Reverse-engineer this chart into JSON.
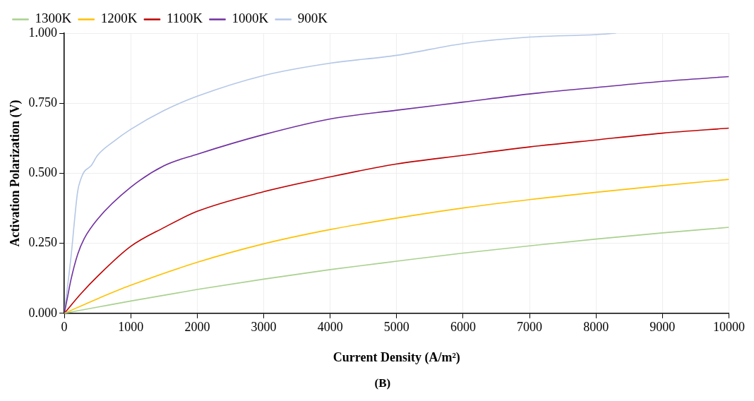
{
  "chart_data": {
    "type": "line",
    "xlabel": "Current Density (A/m²)",
    "ylabel": "Activation Polarization (V)",
    "annotations": [
      "(B)"
    ],
    "xlim": [
      0,
      10000
    ],
    "xticks": [
      0,
      1000,
      2000,
      3000,
      4000,
      5000,
      6000,
      7000,
      8000,
      9000,
      10000
    ],
    "ylim": [
      0,
      1
    ],
    "yticks": [
      {
        "value": 0,
        "label": "0.000"
      },
      {
        "value": 0.25,
        "label": "0.250"
      },
      {
        "value": 0.5,
        "label": "0.500"
      },
      {
        "value": 0.75,
        "label": "0.750"
      },
      {
        "value": 1,
        "label": "1.000"
      }
    ],
    "grid": true,
    "legend": "top left",
    "marker": "none",
    "line_style": "solid",
    "series": [
      {
        "name": "1300K",
        "color": "#a9d18e",
        "x": [
          0,
          500,
          1000,
          2000,
          3000,
          4000,
          5000,
          6000,
          7000,
          8000,
          9000,
          10000
        ],
        "values": [
          0,
          0.022,
          0.044,
          0.085,
          0.122,
          0.156,
          0.186,
          0.215,
          0.241,
          0.265,
          0.287,
          0.307
        ]
      },
      {
        "name": "1200K",
        "color": "#ffc000",
        "x": [
          0,
          500,
          1000,
          2000,
          3000,
          4000,
          5000,
          6000,
          7000,
          8000,
          9000,
          10000
        ],
        "values": [
          0,
          0.052,
          0.1,
          0.182,
          0.248,
          0.299,
          0.34,
          0.376,
          0.406,
          0.432,
          0.456,
          0.478
        ]
      },
      {
        "name": "1100K",
        "color": "#c00000",
        "x": [
          0,
          250,
          500,
          1000,
          1500,
          2000,
          3000,
          4000,
          5000,
          6000,
          7000,
          8000,
          9000,
          10000
        ],
        "values": [
          0,
          0.07,
          0.132,
          0.239,
          0.306,
          0.364,
          0.434,
          0.487,
          0.533,
          0.564,
          0.594,
          0.619,
          0.643,
          0.661
        ]
      },
      {
        "name": "1000K",
        "color": "#7030a0",
        "x": [
          0,
          50,
          100,
          200,
          300,
          500,
          1000,
          1500,
          2000,
          3000,
          4000,
          5000,
          6000,
          7000,
          8000,
          9000,
          10000
        ],
        "values": [
          0,
          0.06,
          0.12,
          0.21,
          0.267,
          0.336,
          0.45,
          0.527,
          0.568,
          0.638,
          0.694,
          0.725,
          0.754,
          0.783,
          0.806,
          0.828,
          0.845
        ]
      },
      {
        "name": "900K",
        "color": "#b4c7e7",
        "x": [
          0,
          100,
          200,
          250,
          300,
          400,
          500,
          750,
          1000,
          1500,
          2000,
          3000,
          4000,
          5000,
          6000,
          7000,
          8000,
          8300
        ],
        "values": [
          0,
          0.2,
          0.434,
          0.48,
          0.506,
          0.526,
          0.564,
          0.615,
          0.657,
          0.724,
          0.775,
          0.849,
          0.893,
          0.921,
          0.963,
          0.986,
          0.995,
          1
        ]
      }
    ]
  }
}
